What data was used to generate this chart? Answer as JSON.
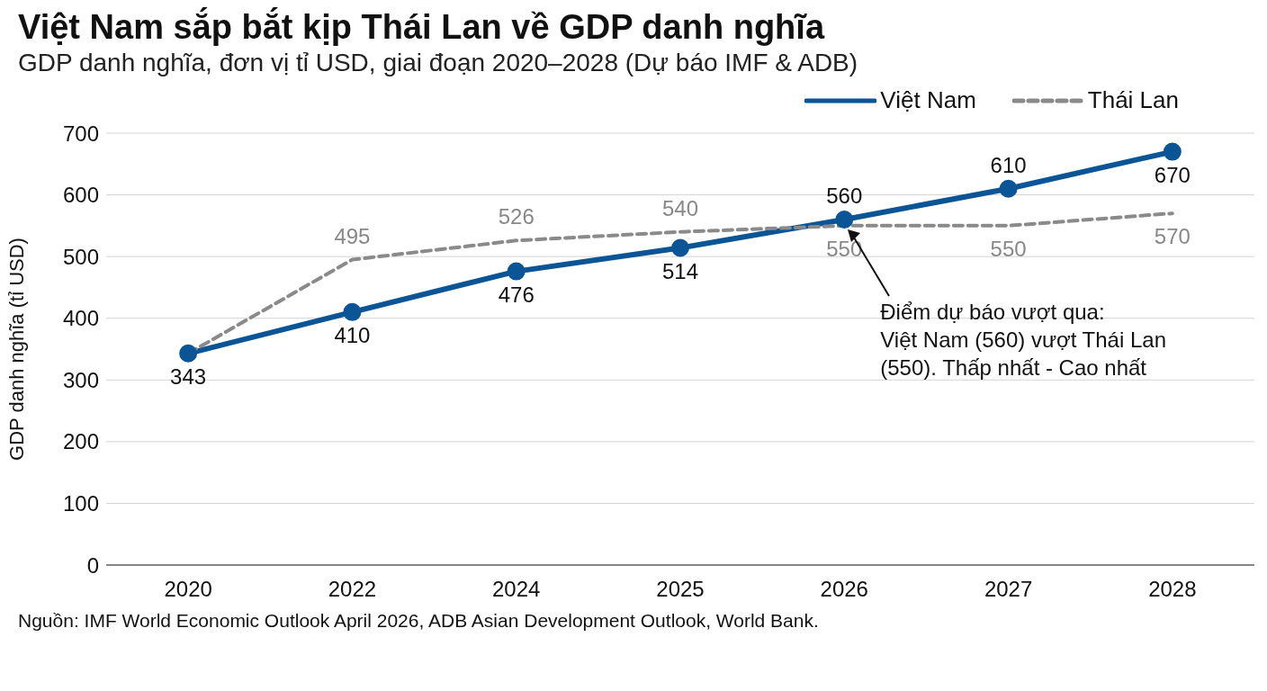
{
  "chart_data": {
    "type": "line",
    "title": "Việt Nam sắp bắt kịp Thái Lan về GDP danh nghĩa",
    "subtitle": "GDP danh nghĩa, đơn vị tỉ USD, giai đoạn 2020–2028 (Dự báo IMF & ADB)",
    "ylabel": "GDP danh nghĩa (tỉ USD)",
    "categories": [
      "2020",
      "2022",
      "2024",
      "2025",
      "2026",
      "2027",
      "2028"
    ],
    "series": [
      {
        "name": "Việt Nam",
        "color": "#0b5597",
        "values": [
          343,
          410,
          476,
          514,
          560,
          610,
          670
        ],
        "value_labels": [
          "343",
          "410",
          "476",
          "514",
          "560",
          "610",
          "670"
        ],
        "marker": "circle",
        "line_style": "solid"
      },
      {
        "name": "Thái Lan",
        "color": "#8a8a8a",
        "values": [
          343,
          495,
          526,
          540,
          550,
          550,
          570
        ],
        "value_labels": [
          null,
          "495",
          "526",
          "540",
          "550",
          "550",
          "570"
        ],
        "marker": "none",
        "line_style": "dashed"
      }
    ],
    "ylim": [
      0,
      700
    ],
    "yticks": [
      0,
      100,
      200,
      300,
      400,
      500,
      600,
      700
    ],
    "grid": "y",
    "legend": "top right",
    "annotations": [
      "Điểm dự báo vượt qua:\nViệt Nam (560) vượt Thái Lan\n(550). Thấp nhất - Cao nhất",
      "Nguồn: IMF World Economic Outlook April 2026, ADB Asian Development Outlook, World Bank."
    ]
  }
}
